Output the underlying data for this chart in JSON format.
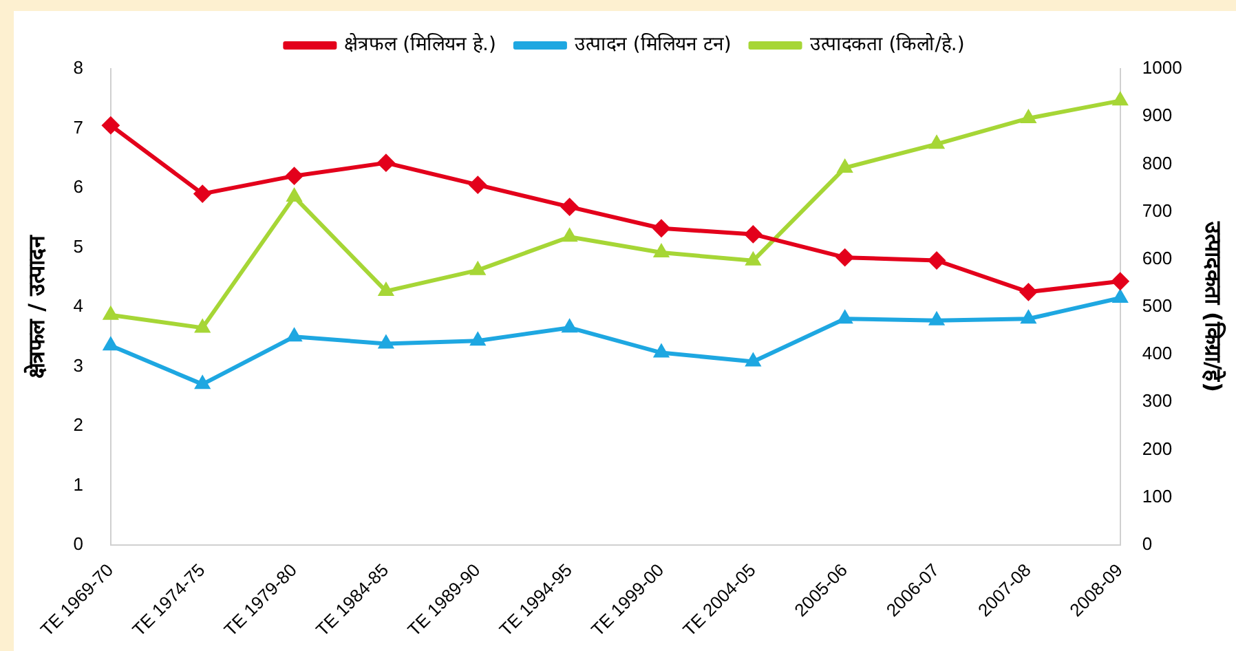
{
  "chart_data": {
    "type": "line",
    "categories": [
      "TE 1969-70",
      "TE 1974-75",
      "TE 1979-80",
      "TE 1984-85",
      "TE 1989-90",
      "TE 1994-95",
      "TE 1999-00",
      "TE 2004-05",
      "2005-06",
      "2006-07",
      "2007-08",
      "2008-09"
    ],
    "series": [
      {
        "name": "क्षेत्रफल (मिलियन हे.)",
        "color": "#e3001b",
        "marker": "diamond",
        "values": [
          7.05,
          5.9,
          6.2,
          6.42,
          6.05,
          5.68,
          5.32,
          5.22,
          4.83,
          4.78,
          4.25,
          4.43
        ]
      },
      {
        "name": "उत्पादन (मिलियन टन)",
        "color": "#1ea7e1",
        "marker": "triangle",
        "values": [
          3.35,
          2.7,
          3.5,
          3.38,
          3.43,
          3.65,
          3.23,
          3.08,
          3.8,
          3.77,
          3.8,
          4.15
        ]
      },
      {
        "name": "उत्पादकता (किलो/हे.)",
        "color": "#a6d636",
        "marker": "triangle",
        "axis": "y2",
        "values": [
          483,
          456,
          731,
          533,
          577,
          647,
          614,
          597,
          792,
          842,
          896,
          933
        ]
      }
    ],
    "ylabel": "क्षेत्रफल / उत्पादन",
    "y2label": "उत्पादकता (किग्रा/हे)",
    "ylim": [
      0,
      8
    ],
    "yticks": [
      0,
      1,
      2,
      3,
      4,
      5,
      6,
      7,
      8
    ],
    "y2lim": [
      0,
      1000
    ],
    "y2ticks": [
      0,
      100,
      200,
      300,
      400,
      500,
      600,
      700,
      800,
      900,
      1000
    ],
    "grid": false,
    "legend": "top",
    "line_style": "solid"
  }
}
